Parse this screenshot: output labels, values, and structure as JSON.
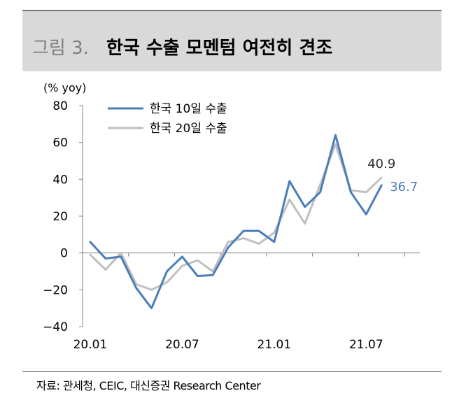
{
  "title": {
    "number": "그림 3.",
    "text": "한국 수출 모멘텀 여전히 견조"
  },
  "source": "자료: 관세청, CEIC, 대신증권 Research Center",
  "chart_data": {
    "type": "line",
    "ylabel": "(% yoy)",
    "ylim": [
      -40,
      80
    ],
    "yticks": [
      80,
      60,
      40,
      20,
      0,
      -20,
      -40
    ],
    "ytick_labels": [
      "80",
      "60",
      "40",
      "20",
      "0",
      "−20",
      "−40"
    ],
    "x": [
      "20.01",
      "20.02",
      "20.03",
      "20.04",
      "20.05",
      "20.06",
      "20.07",
      "20.08",
      "20.09",
      "20.10",
      "20.11",
      "20.12",
      "21.01",
      "21.02",
      "21.03",
      "21.04",
      "21.05",
      "21.06",
      "21.07",
      "21.08"
    ],
    "xtick_labels": [
      {
        "index": 0,
        "label": "20.01"
      },
      {
        "index": 6,
        "label": "20.07"
      },
      {
        "index": 12,
        "label": "21.01"
      },
      {
        "index": 18,
        "label": "21.07"
      }
    ],
    "x_total_slots": 22,
    "series": [
      {
        "name": "한국 10일 수출",
        "color": "#4a7ebb",
        "values": [
          6,
          -3,
          -2,
          -19,
          -30,
          -10,
          -2,
          -12.5,
          -12,
          3,
          12,
          12,
          6,
          39,
          25,
          33,
          64,
          33,
          21,
          36.7
        ],
        "end_label": "36.7",
        "end_label_color": "#4a7ebb"
      },
      {
        "name": "한국 20일 수출",
        "color": "#bfbfbf",
        "values": [
          -1,
          -9,
          0,
          -17,
          -20,
          -16,
          -7,
          -4,
          -10,
          6,
          8,
          5,
          11,
          29,
          16,
          37,
          59,
          34,
          33,
          40.9
        ],
        "end_label": "40.9",
        "end_label_color": "#333333"
      }
    ],
    "legend_position": "top-left",
    "grid": false
  }
}
